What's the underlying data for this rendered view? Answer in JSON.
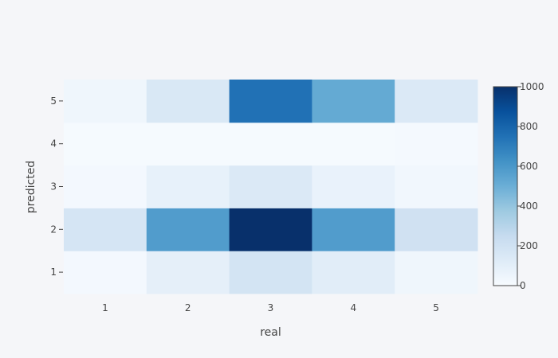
{
  "chart_data": {
    "type": "heatmap",
    "xlabel": "real",
    "ylabel": "predicted",
    "x": [
      "1",
      "2",
      "3",
      "4",
      "5"
    ],
    "y": [
      "1",
      "2",
      "3",
      "4",
      "5"
    ],
    "z": [
      [
        20,
        90,
        180,
        110,
        40
      ],
      [
        170,
        580,
        1000,
        580,
        200
      ],
      [
        20,
        80,
        140,
        70,
        30
      ],
      [
        10,
        10,
        10,
        10,
        15
      ],
      [
        40,
        150,
        750,
        520,
        140
      ]
    ],
    "colorscale": {
      "min": 0,
      "max": 1000,
      "ticks": [
        "0",
        "200",
        "400",
        "600",
        "800",
        "1000"
      ],
      "colors": [
        "#f7fbff",
        "#deebf7",
        "#c6dbef",
        "#9ecae1",
        "#6baed6",
        "#4292c6",
        "#2171b5",
        "#08519c",
        "#08306b"
      ]
    },
    "grid": false
  }
}
